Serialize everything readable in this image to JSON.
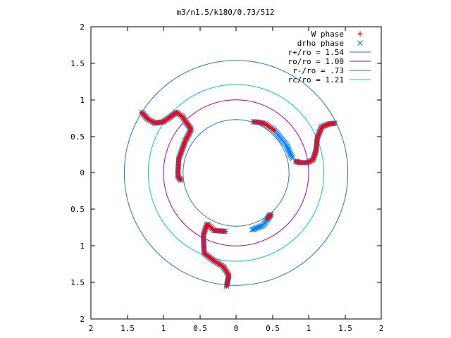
{
  "chart_data": {
    "type": "scatter",
    "title": "m3/n1.5/k180/0.73/512",
    "xlim": [
      -2,
      2
    ],
    "ylim": [
      -2,
      2
    ],
    "x_tick_labels": [
      "2",
      "1.5",
      "1",
      "0.5",
      "0",
      "0.5",
      "1",
      "1.5",
      "2"
    ],
    "y_tick_labels": [
      "2",
      "1.5",
      "1",
      "0.5",
      "0",
      "0.5",
      "1",
      "1.5",
      "2"
    ],
    "grid": false,
    "legend_placement": "top-right",
    "colors": {
      "w_phase": "#ff0000",
      "drho_phase": "#0080ff",
      "r_plus": "#1e78c8",
      "r_o": "#a000c8",
      "r_minus": "#1e78c8",
      "r_c": "#00c8d2"
    },
    "series": [
      {
        "name": "W phase",
        "marker": "plus",
        "points": [
          [
            -1.3,
            0.83
          ],
          [
            -1.22,
            0.74
          ],
          [
            -1.12,
            0.68
          ],
          [
            -1.0,
            0.7
          ],
          [
            -0.9,
            0.77
          ],
          [
            -0.82,
            0.83
          ],
          [
            -0.74,
            0.77
          ],
          [
            -0.68,
            0.68
          ],
          [
            -0.62,
            0.6
          ],
          [
            -0.64,
            0.55
          ],
          [
            -0.7,
            0.44
          ],
          [
            -0.79,
            0.19
          ],
          [
            -0.8,
            0.02
          ],
          [
            -0.8,
            -0.05
          ],
          [
            -0.76,
            -0.1
          ],
          [
            0.24,
            0.7
          ],
          [
            0.33,
            0.69
          ],
          [
            0.4,
            0.67
          ],
          [
            0.53,
            0.58
          ],
          [
            1.36,
            0.68
          ],
          [
            1.28,
            0.67
          ],
          [
            1.18,
            0.63
          ],
          [
            1.12,
            0.48
          ],
          [
            1.1,
            0.3
          ],
          [
            1.06,
            0.18
          ],
          [
            0.98,
            0.14
          ],
          [
            0.88,
            0.14
          ],
          [
            0.82,
            0.16
          ],
          [
            0.43,
            -0.63
          ],
          [
            0.45,
            -0.6
          ],
          [
            0.48,
            -0.57
          ],
          [
            -0.15,
            -0.8
          ],
          [
            -0.3,
            -0.79
          ],
          [
            -0.4,
            -0.7
          ],
          [
            -0.45,
            -0.85
          ],
          [
            -0.44,
            -1.1
          ],
          [
            -0.31,
            -1.2
          ],
          [
            -0.18,
            -1.28
          ],
          [
            -0.1,
            -1.4
          ],
          [
            -0.12,
            -1.5
          ],
          [
            -0.13,
            -1.55
          ]
        ]
      },
      {
        "name": "drho phase",
        "marker": "cross",
        "points": [
          [
            -1.3,
            0.83
          ],
          [
            -1.22,
            0.74
          ],
          [
            -1.12,
            0.68
          ],
          [
            -1.0,
            0.7
          ],
          [
            -0.9,
            0.77
          ],
          [
            -0.82,
            0.83
          ],
          [
            -0.74,
            0.77
          ],
          [
            -0.68,
            0.68
          ],
          [
            -0.62,
            0.6
          ],
          [
            -0.64,
            0.55
          ],
          [
            -0.7,
            0.44
          ],
          [
            -0.79,
            0.19
          ],
          [
            -0.8,
            0.02
          ],
          [
            -0.8,
            -0.05
          ],
          [
            -0.76,
            -0.1
          ],
          [
            0.24,
            0.7
          ],
          [
            0.33,
            0.69
          ],
          [
            0.4,
            0.67
          ],
          [
            0.53,
            0.58
          ],
          [
            0.7,
            0.37
          ],
          [
            0.75,
            0.25
          ],
          [
            0.78,
            0.2
          ],
          [
            1.36,
            0.68
          ],
          [
            1.28,
            0.67
          ],
          [
            1.18,
            0.63
          ],
          [
            1.12,
            0.48
          ],
          [
            1.1,
            0.3
          ],
          [
            1.06,
            0.18
          ],
          [
            0.98,
            0.14
          ],
          [
            0.88,
            0.14
          ],
          [
            0.82,
            0.16
          ],
          [
            0.43,
            -0.63
          ],
          [
            0.45,
            -0.6
          ],
          [
            0.48,
            -0.57
          ],
          [
            0.37,
            -0.72
          ],
          [
            0.22,
            -0.78
          ],
          [
            -0.15,
            -0.8
          ],
          [
            -0.3,
            -0.79
          ],
          [
            -0.4,
            -0.7
          ],
          [
            -0.45,
            -0.85
          ],
          [
            -0.44,
            -1.1
          ],
          [
            -0.31,
            -1.2
          ],
          [
            -0.18,
            -1.28
          ],
          [
            -0.1,
            -1.4
          ],
          [
            -0.12,
            -1.5
          ],
          [
            -0.13,
            -1.55
          ]
        ]
      },
      {
        "name": "r+/ro = 1.54",
        "type": "circle",
        "radius": 1.54
      },
      {
        "name": "ro/ro = 1.00",
        "type": "circle",
        "radius": 1.0
      },
      {
        "name": "r-/ro = .73",
        "type": "circle",
        "radius": 0.73
      },
      {
        "name": "rc/ro = 1.21",
        "type": "circle",
        "radius": 1.21
      }
    ]
  }
}
